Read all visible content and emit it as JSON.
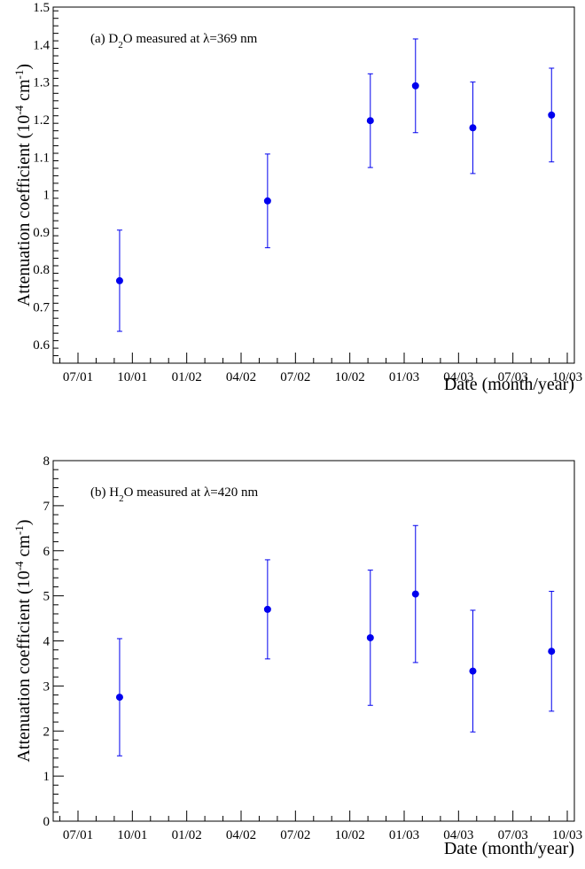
{
  "chart_data": [
    {
      "type": "scatter",
      "title": "",
      "annotation": {
        "prefix": "(a) D",
        "sub": "2",
        "suffix": "O measured at λ=369 nm"
      },
      "xlabel": "Date (month/year)",
      "ylabel": {
        "main": "Attenuation coefficient (10",
        "exp": "-4",
        "unit": " cm",
        "unit_exp": "-1",
        "close": ")"
      },
      "x_ticks": [
        "07/01",
        "10/01",
        "01/02",
        "04/02",
        "07/02",
        "10/02",
        "01/03",
        "04/03",
        "07/03",
        "10/03"
      ],
      "ylim": [
        0.55,
        1.5
      ],
      "y_ticks": [
        "0.6",
        "0.7",
        "0.8",
        "0.9",
        "1",
        "1.1",
        "1.2",
        "1.3",
        "1.4",
        "1.5"
      ],
      "y_tick_values": [
        0.6,
        0.7,
        0.8,
        0.9,
        1.0,
        1.1,
        1.2,
        1.3,
        1.4,
        1.5
      ],
      "grid": false,
      "marker_color": "#0000ee",
      "series": [
        {
          "x": [
            "2001-09-10",
            "2002-05-15",
            "2002-11-05",
            "2003-01-20",
            "2003-04-25",
            "2003-09-05"
          ],
          "y": [
            0.77,
            0.983,
            1.197,
            1.29,
            1.178,
            1.212
          ],
          "err": [
            0.135,
            0.125,
            0.125,
            0.125,
            0.122,
            0.125
          ]
        }
      ]
    },
    {
      "type": "scatter",
      "title": "",
      "annotation": {
        "prefix": "(b) H",
        "sub": "2",
        "suffix": "O measured at λ=420 nm"
      },
      "xlabel": "Date (month/year)",
      "ylabel": {
        "main": "Attenuation coefficient (10",
        "exp": "-4",
        "unit": " cm",
        "unit_exp": "-1",
        "close": ")"
      },
      "x_ticks": [
        "07/01",
        "10/01",
        "01/02",
        "04/02",
        "07/02",
        "10/02",
        "01/03",
        "04/03",
        "07/03",
        "10/03"
      ],
      "ylim": [
        0,
        8
      ],
      "y_ticks": [
        "0",
        "1",
        "2",
        "3",
        "4",
        "5",
        "6",
        "7",
        "8"
      ],
      "y_tick_values": [
        0,
        1,
        2,
        3,
        4,
        5,
        6,
        7,
        8
      ],
      "grid": false,
      "marker_color": "#0000ee",
      "series": [
        {
          "x": [
            "2001-09-10",
            "2002-05-15",
            "2002-11-05",
            "2003-01-20",
            "2003-04-25",
            "2003-09-05"
          ],
          "y": [
            2.75,
            4.7,
            4.07,
            5.04,
            3.33,
            3.77
          ],
          "err": [
            1.3,
            1.1,
            1.5,
            1.52,
            1.35,
            1.33
          ]
        }
      ]
    }
  ]
}
